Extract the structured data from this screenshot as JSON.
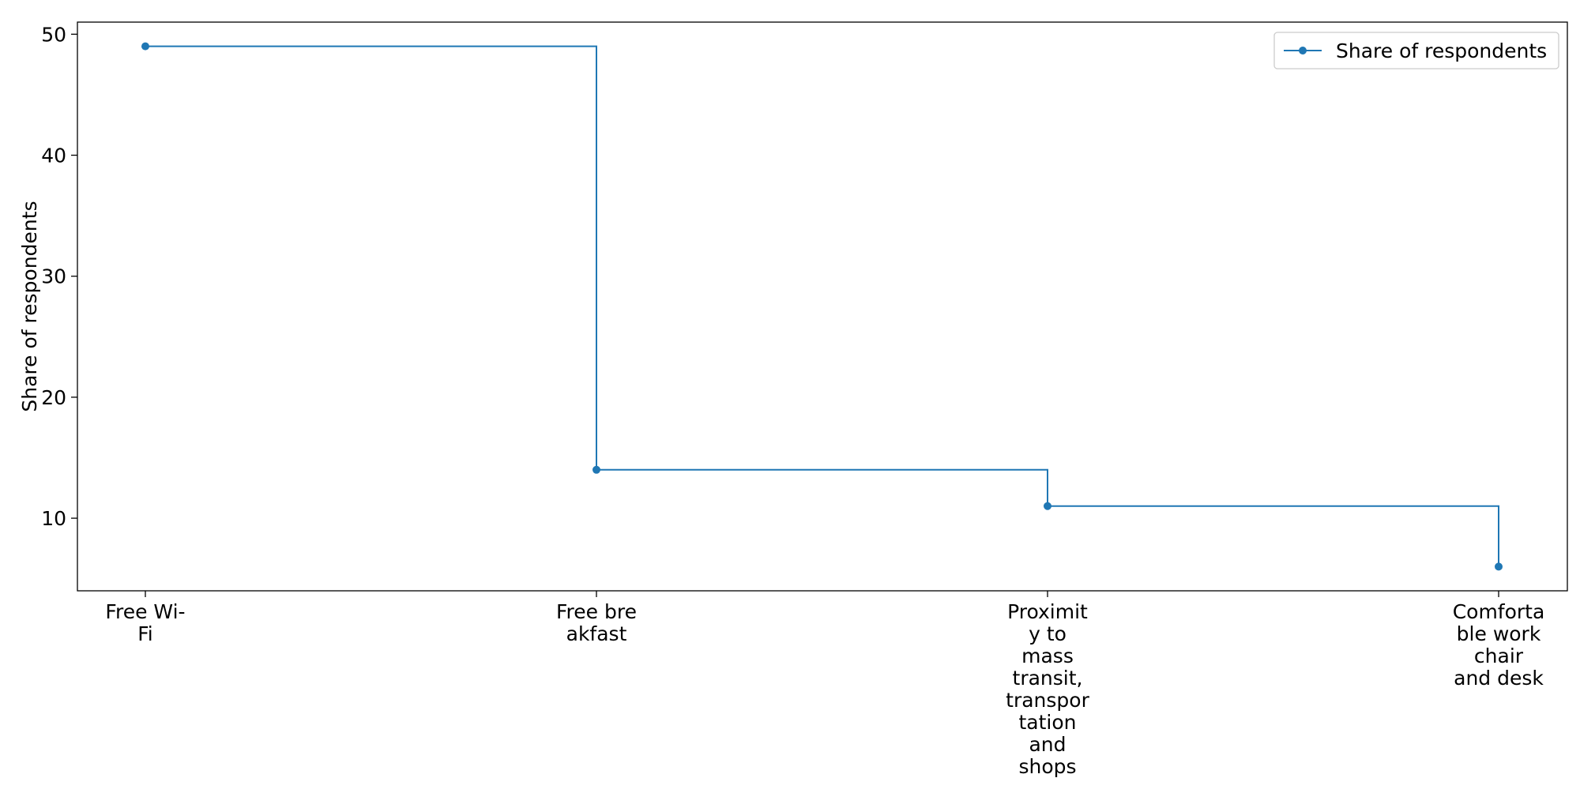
{
  "chart_data": {
    "type": "line",
    "drawstyle": "steps-post",
    "title": "",
    "xlabel": "",
    "ylabel": "Share of respondents",
    "categories": [
      [
        "Free Wi-",
        "Fi"
      ],
      [
        "Free bre",
        "akfast"
      ],
      [
        "Proximit",
        "y to",
        "mass",
        "transit,",
        "transpor",
        "tation",
        "and",
        "shops"
      ],
      [
        "Comforta",
        "ble work",
        "chair",
        "and desk"
      ]
    ],
    "series": [
      {
        "name": "Share of respondents",
        "values": [
          49,
          14,
          11,
          6
        ],
        "color": "#1f77b4",
        "marker": "circle"
      }
    ],
    "ylim": [
      4,
      51
    ],
    "yticks": [
      10,
      20,
      30,
      40,
      50
    ],
    "grid": false,
    "legend_position": "top-right"
  }
}
